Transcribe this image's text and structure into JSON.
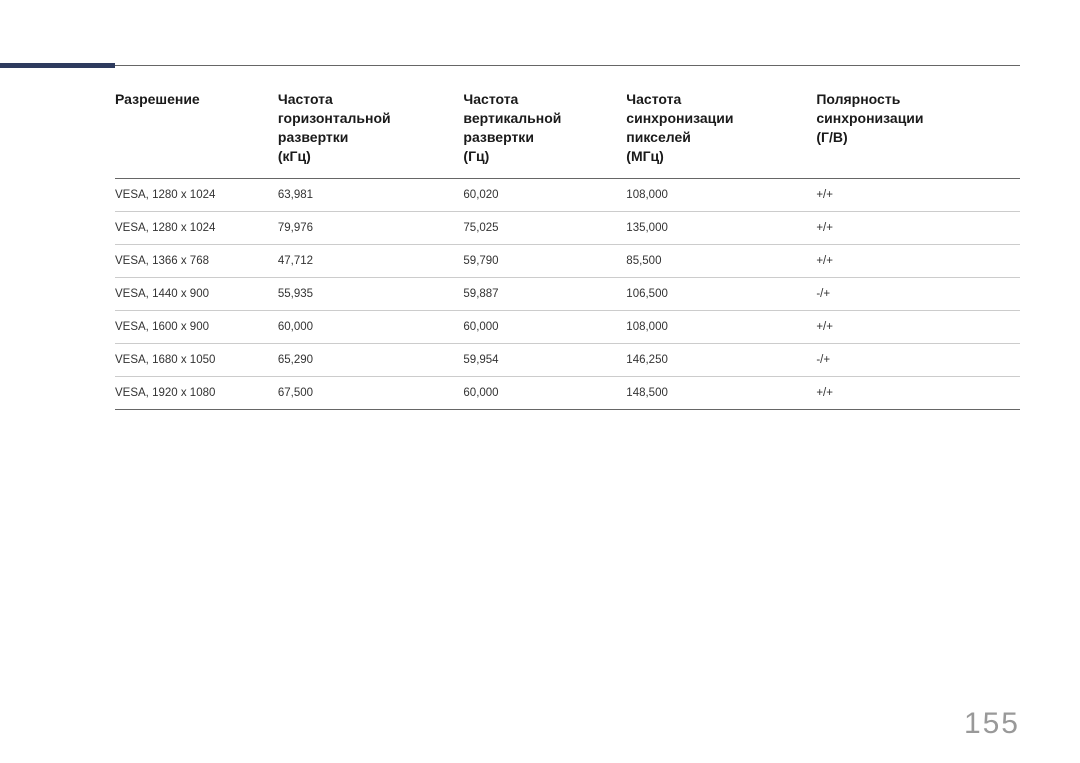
{
  "page_number": "155",
  "accent_color": "#2e3b5e",
  "table": {
    "columns": [
      "Разрешение",
      "Частота\nгоризонтальной\nразвертки\n(кГц)",
      "Частота\nвертикальной\nразвертки\n(Гц)",
      "Частота\nсинхронизации\nпикселей\n(МГц)",
      "Полярность\nсинхронизации\n(Г/В)"
    ],
    "rows": [
      [
        "VESA, 1280 x 1024",
        "63,981",
        "60,020",
        "108,000",
        "+/+"
      ],
      [
        "VESA, 1280 x 1024",
        "79,976",
        "75,025",
        "135,000",
        "+/+"
      ],
      [
        "VESA, 1366 x 768",
        "47,712",
        "59,790",
        "85,500",
        "+/+"
      ],
      [
        "VESA, 1440 x 900",
        "55,935",
        "59,887",
        "106,500",
        "-/+"
      ],
      [
        "VESA, 1600 x 900",
        "60,000",
        "60,000",
        "108,000",
        "+/+"
      ],
      [
        "VESA, 1680 x 1050",
        "65,290",
        "59,954",
        "146,250",
        "-/+"
      ],
      [
        "VESA, 1920 x 1080",
        "67,500",
        "60,000",
        "148,500",
        "+/+"
      ]
    ]
  }
}
